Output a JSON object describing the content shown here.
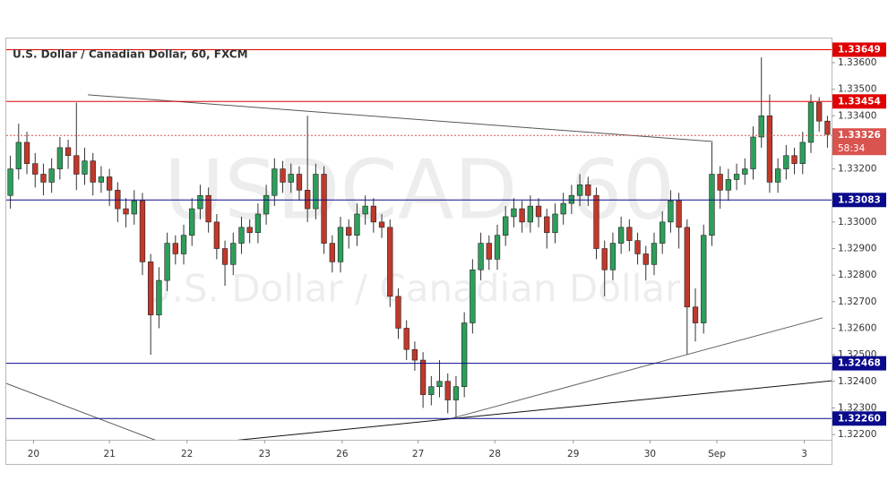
{
  "chart_data": {
    "type": "candlestick",
    "title": "U.S. Dollar / Canadian Dollar, 60, FXCM",
    "watermark": "USDCAD, 60",
    "watermark_subtitle": "U.S. Dollar / Canadian Dollar",
    "up_color": "#2e9e5b",
    "down_color": "#c0392b",
    "xlim": [
      0,
      100
    ],
    "xticks": [
      {
        "value": 3.3,
        "label": "20"
      },
      {
        "value": 12.5,
        "label": "21"
      },
      {
        "value": 21.9,
        "label": "22"
      },
      {
        "value": 31.3,
        "label": "23"
      },
      {
        "value": 40.7,
        "label": "26"
      },
      {
        "value": 49.9,
        "label": "27"
      },
      {
        "value": 59.2,
        "label": "28"
      },
      {
        "value": 68.7,
        "label": "29"
      },
      {
        "value": 78.0,
        "label": "30"
      },
      {
        "value": 86.1,
        "label": "Sep"
      },
      {
        "value": 96.7,
        "label": "3"
      }
    ],
    "ylim": [
      1.3218,
      1.33691
    ],
    "yticks": [
      {
        "value": 1.322,
        "label": "1.32200"
      },
      {
        "value": 1.323,
        "label": "1.32300"
      },
      {
        "value": 1.324,
        "label": "1.32400"
      },
      {
        "value": 1.325,
        "label": "1.32500"
      },
      {
        "value": 1.326,
        "label": "1.32600"
      },
      {
        "value": 1.327,
        "label": "1.32700"
      },
      {
        "value": 1.328,
        "label": "1.32800"
      },
      {
        "value": 1.329,
        "label": "1.32900"
      },
      {
        "value": 1.33,
        "label": "1.33000"
      },
      {
        "value": 1.332,
        "label": "1.33200"
      },
      {
        "value": 1.334,
        "label": "1.33400"
      },
      {
        "value": 1.335,
        "label": "1.33500"
      },
      {
        "value": 1.336,
        "label": "1.33600"
      }
    ],
    "levels": [
      {
        "value": 1.33649,
        "label": "1.33649",
        "color": "#e00000"
      },
      {
        "value": 1.33454,
        "label": "1.33454",
        "color": "#e00000"
      },
      {
        "value": 1.33083,
        "label": "1.33083",
        "color": "#0a0a8c"
      },
      {
        "value": 1.32468,
        "label": "1.32468",
        "color": "#0a0a8c"
      },
      {
        "value": 1.3226,
        "label": "1.32260",
        "color": "#0a0a8c"
      }
    ],
    "current_price": {
      "value": 1.33326,
      "label": "1.33326",
      "color": "#d9534f"
    },
    "countdown": "58:34",
    "trendlines": [
      {
        "x": [
          9.9,
          85.6
        ],
        "y": [
          1.33479,
          1.33303
        ],
        "color": "#555"
      },
      {
        "x": [
          0,
          18.3
        ],
        "y": [
          1.32392,
          1.32176
        ],
        "color": "#555"
      },
      {
        "x": [
          27.2,
          100
        ],
        "y": [
          1.32176,
          1.32402
        ],
        "color": "#111"
      },
      {
        "x": [
          54,
          98.9
        ],
        "y": [
          1.32261,
          1.32639
        ],
        "color": "#666"
      }
    ],
    "open": [
      1.331,
      1.332,
      1.333,
      1.3322,
      1.3318,
      1.3315,
      1.332,
      1.3328,
      1.3325,
      1.3318,
      1.3323,
      1.3315,
      1.3317,
      1.3312,
      1.3305,
      1.3303,
      1.3308,
      1.3285,
      1.3265,
      1.3278,
      1.3292,
      1.3288,
      1.3295,
      1.3305,
      1.331,
      1.33,
      1.329,
      1.3284,
      1.3292,
      1.3298,
      1.3296,
      1.3303,
      1.331,
      1.332,
      1.3315,
      1.3318,
      1.3312,
      1.3305,
      1.3318,
      1.3292,
      1.3285,
      1.3298,
      1.3295,
      1.3303,
      1.3306,
      1.33,
      1.3298,
      1.3272,
      1.326,
      1.3252,
      1.3248,
      1.3235,
      1.3238,
      1.324,
      1.3233,
      1.3238,
      1.3262,
      1.3282,
      1.3292,
      1.3286,
      1.3295,
      1.3302,
      1.3305,
      1.33,
      1.3306,
      1.3302,
      1.3296,
      1.3303,
      1.3307,
      1.331,
      1.3314,
      1.331,
      1.329,
      1.3282,
      1.3292,
      1.3298,
      1.3293,
      1.3288,
      1.3284,
      1.3292,
      1.33,
      1.3308,
      1.3298,
      1.3268,
      1.3262,
      1.3295,
      1.3318,
      1.3312,
      1.3316,
      1.3318,
      1.332,
      1.3332,
      1.334,
      1.3315,
      1.332,
      1.3325,
      1.3322,
      1.333,
      1.3345,
      1.3338
    ],
    "high": [
      1.3325,
      1.3337,
      1.3334,
      1.3326,
      1.3322,
      1.3324,
      1.3332,
      1.3331,
      1.3345,
      1.3328,
      1.3326,
      1.3321,
      1.332,
      1.3315,
      1.3309,
      1.3312,
      1.3311,
      1.3288,
      1.3283,
      1.3296,
      1.3295,
      1.3299,
      1.3309,
      1.3314,
      1.3313,
      1.3303,
      1.3293,
      1.3296,
      1.3302,
      1.3301,
      1.3307,
      1.3314,
      1.3324,
      1.3323,
      1.3322,
      1.3321,
      1.334,
      1.3322,
      1.3321,
      1.3295,
      1.3302,
      1.3301,
      1.3307,
      1.331,
      1.3309,
      1.3303,
      1.3301,
      1.3275,
      1.3263,
      1.3255,
      1.3251,
      1.3242,
      1.3248,
      1.3243,
      1.3242,
      1.3266,
      1.3286,
      1.3296,
      1.3295,
      1.3299,
      1.3306,
      1.3309,
      1.3308,
      1.331,
      1.3309,
      1.3305,
      1.3307,
      1.3311,
      1.3314,
      1.3318,
      1.3317,
      1.3313,
      1.3293,
      1.3296,
      1.3302,
      1.3301,
      1.3296,
      1.3291,
      1.3296,
      1.3304,
      1.3312,
      1.3311,
      1.3301,
      1.3275,
      1.3299,
      1.333,
      1.3321,
      1.332,
      1.3322,
      1.3324,
      1.3336,
      1.3362,
      1.3348,
      1.3324,
      1.3329,
      1.3328,
      1.3334,
      1.3348,
      1.3347,
      1.334
    ],
    "low": [
      1.3305,
      1.3316,
      1.3318,
      1.3313,
      1.331,
      1.3311,
      1.3316,
      1.332,
      1.3312,
      1.3314,
      1.331,
      1.3311,
      1.3306,
      1.33,
      1.3298,
      1.3299,
      1.328,
      1.325,
      1.326,
      1.3274,
      1.3284,
      1.3284,
      1.3291,
      1.3301,
      1.3296,
      1.3286,
      1.3276,
      1.328,
      1.3288,
      1.3292,
      1.3292,
      1.3299,
      1.3306,
      1.3311,
      1.3311,
      1.3308,
      1.33,
      1.3301,
      1.3288,
      1.3281,
      1.3281,
      1.329,
      1.3291,
      1.3299,
      1.3296,
      1.3294,
      1.3268,
      1.3256,
      1.3248,
      1.3244,
      1.323,
      1.3231,
      1.3234,
      1.3228,
      1.3226,
      1.3234,
      1.3258,
      1.3278,
      1.3282,
      1.3282,
      1.3291,
      1.3298,
      1.3296,
      1.3296,
      1.3298,
      1.329,
      1.3292,
      1.3299,
      1.3303,
      1.3306,
      1.3306,
      1.3286,
      1.3272,
      1.3278,
      1.3288,
      1.3289,
      1.3284,
      1.3278,
      1.328,
      1.3288,
      1.3296,
      1.329,
      1.325,
      1.3255,
      1.3258,
      1.3291,
      1.3305,
      1.3308,
      1.3312,
      1.3314,
      1.3316,
      1.3328,
      1.3311,
      1.3311,
      1.3316,
      1.3318,
      1.3318,
      1.3326,
      1.3334,
      1.3328
    ],
    "close": [
      1.332,
      1.333,
      1.3322,
      1.3318,
      1.3315,
      1.332,
      1.3328,
      1.3325,
      1.3318,
      1.3323,
      1.3315,
      1.3317,
      1.3312,
      1.3305,
      1.3303,
      1.3308,
      1.3285,
      1.3265,
      1.3278,
      1.3292,
      1.3288,
      1.3295,
      1.3305,
      1.331,
      1.33,
      1.329,
      1.3284,
      1.3292,
      1.3298,
      1.3296,
      1.3303,
      1.331,
      1.332,
      1.3315,
      1.3318,
      1.3312,
      1.3305,
      1.3318,
      1.3292,
      1.3285,
      1.3298,
      1.3295,
      1.3303,
      1.3306,
      1.33,
      1.3298,
      1.3272,
      1.326,
      1.3252,
      1.3248,
      1.3235,
      1.3238,
      1.324,
      1.3233,
      1.3238,
      1.3262,
      1.3282,
      1.3292,
      1.3286,
      1.3295,
      1.3302,
      1.3305,
      1.33,
      1.3306,
      1.3302,
      1.3296,
      1.3303,
      1.3307,
      1.331,
      1.3314,
      1.331,
      1.329,
      1.3282,
      1.3292,
      1.3298,
      1.3293,
      1.3288,
      1.3284,
      1.3292,
      1.33,
      1.3308,
      1.3298,
      1.3268,
      1.3262,
      1.3295,
      1.3318,
      1.3312,
      1.3316,
      1.3318,
      1.332,
      1.3332,
      1.334,
      1.3315,
      1.332,
      1.3325,
      1.3322,
      1.333,
      1.3345,
      1.3338,
      1.3333
    ]
  }
}
